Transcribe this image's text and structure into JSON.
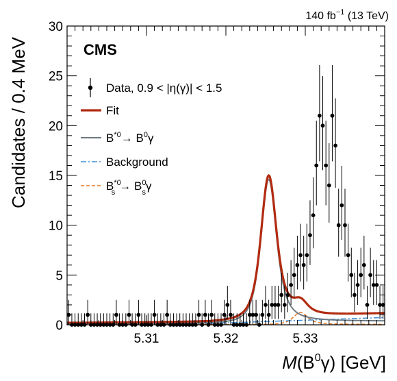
{
  "header": {
    "lumi_prefix": "140 fb",
    "lumi_exp": "−1",
    "lumi_suffix": " (13 TeV)"
  },
  "chart_data": {
    "type": "scatter",
    "experiment": "CMS",
    "ylabel": "Candidates / 0.4 MeV",
    "xlabel": {
      "italic": "M",
      "open": "(B",
      "sup": "0",
      "close": "γ) [GeV]"
    },
    "xlim": [
      5.3,
      5.34
    ],
    "ylim": [
      0,
      30
    ],
    "x_ticks": [
      "5.31",
      "5.32",
      "5.33"
    ],
    "x_tick_values": [
      5.31,
      5.32,
      5.33
    ],
    "y_ticks": [
      "0",
      "5",
      "10",
      "15",
      "20",
      "25",
      "30"
    ],
    "y_tick_values": [
      0,
      5,
      10,
      15,
      20,
      25,
      30
    ],
    "legend_position": "top-left",
    "legend": [
      {
        "key": "data",
        "text": "Data, 0.9 < |η(γ)| < 1.5",
        "color": "#000000"
      },
      {
        "key": "fit",
        "text": "Fit",
        "color": "#b22b10"
      },
      {
        "key": "signal",
        "main": "B",
        "sup1": "*0",
        "arrow": "→ B",
        "sup2": "0",
        "tail": "γ",
        "color": "#6e7a82"
      },
      {
        "key": "background",
        "text": "Background",
        "color": "#3d8fd9"
      },
      {
        "key": "bs",
        "main": "B",
        "sup1": "*0",
        "sub1": "s",
        "arrow": "→ B",
        "sup2": "0",
        "sub2": "s",
        "tail": "γ",
        "color": "#e8771e"
      }
    ],
    "data": {
      "x_start": 5.3002,
      "bin_width": 0.0004,
      "y": [
        1,
        0,
        0,
        0,
        0,
        0,
        1,
        0,
        0,
        0,
        0,
        0,
        0,
        0,
        0,
        1,
        0,
        0,
        0,
        1,
        0,
        0,
        1,
        0,
        0,
        0,
        0,
        1,
        0,
        0,
        0,
        1,
        0,
        0,
        0,
        0,
        0,
        0,
        0,
        0,
        0,
        1,
        0,
        1,
        0,
        1,
        0,
        0,
        0,
        1,
        2,
        1,
        0,
        0,
        0,
        0,
        0,
        1,
        1,
        1,
        0,
        1,
        2,
        1,
        2,
        2,
        2,
        3,
        2,
        3,
        4,
        5,
        6,
        7,
        6,
        7,
        9,
        11,
        16,
        21,
        20,
        16,
        14,
        21,
        18,
        10,
        12,
        10,
        7,
        5,
        3,
        4,
        5,
        6,
        2,
        5,
        4,
        4,
        2,
        2
      ]
    },
    "curves": {
      "fit": {
        "name": "Fit",
        "color": "#b22b10"
      },
      "signal": {
        "color": "#6e7a82"
      },
      "background": {
        "name": "Background",
        "color": "#3d8fd9"
      },
      "bs": {
        "color": "#e8771e"
      }
    }
  }
}
